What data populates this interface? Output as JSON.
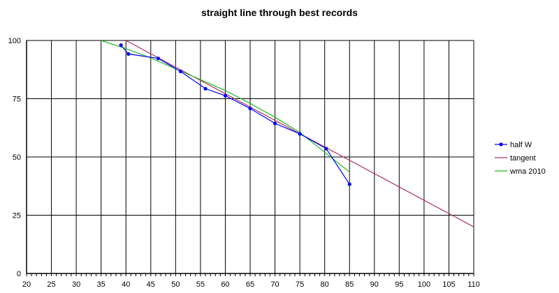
{
  "chart_data": {
    "type": "line",
    "title": "straight line through best records",
    "xlabel": "",
    "ylabel": "",
    "xlim": [
      20,
      110
    ],
    "ylim": [
      0,
      100
    ],
    "x_ticks": [
      20,
      25,
      30,
      35,
      40,
      45,
      50,
      55,
      60,
      65,
      70,
      75,
      80,
      85,
      90,
      95,
      100,
      105,
      110
    ],
    "y_ticks": [
      0,
      25,
      50,
      75,
      100
    ],
    "grid": true,
    "legend": "right",
    "series": [
      {
        "name": "half W",
        "color": "#0000ff",
        "markers": true,
        "x": [
          39,
          40.5,
          46.5,
          51,
          56,
          60,
          65,
          70,
          75,
          80.3,
          85
        ],
        "y": [
          98,
          94.2,
          92.3,
          86.7,
          79.3,
          76.3,
          70.8,
          64.4,
          59.9,
          53.6,
          38.3
        ]
      },
      {
        "name": "tangent",
        "color": "#b03060",
        "markers": false,
        "x": [
          40,
          110
        ],
        "y": [
          100,
          20
        ]
      },
      {
        "name": "wma 2010",
        "color": "#22bb22",
        "markers": false,
        "x": [
          35,
          40,
          45,
          50,
          55,
          60,
          65,
          70,
          75,
          80,
          85
        ],
        "y": [
          100,
          96.5,
          92.5,
          87.8,
          83.2,
          78.5,
          73,
          67,
          60.5,
          52,
          43.5
        ]
      }
    ]
  }
}
